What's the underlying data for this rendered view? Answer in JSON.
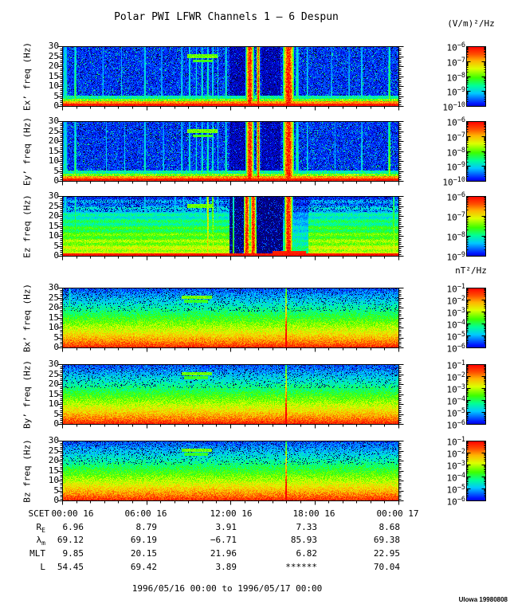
{
  "title": "Polar PWI LFWR Channels 1 — 6 Despun",
  "colorbar_units": {
    "electric": "(V/m)²/Hz",
    "magnetic": "nT²/Hz"
  },
  "freq_ticks": [
    "30",
    "25",
    "20",
    "15",
    "10",
    "5",
    "0"
  ],
  "time_axis": {
    "scet_label": "SCET",
    "ticks": [
      "00:00 16",
      "06:00 16",
      "12:00 16",
      "18:00 16",
      "00:00 17"
    ]
  },
  "ephemeris": {
    "rows": [
      {
        "label_base": "R",
        "label_sub": "E",
        "values": [
          "6.96",
          "8.79",
          "3.91",
          "7.33",
          "8.68"
        ]
      },
      {
        "label_base": "λ",
        "label_sub": "m",
        "values": [
          "69.12",
          "69.19",
          "−6.71",
          "85.93",
          "69.38"
        ]
      },
      {
        "label_base": "MLT",
        "label_sub": "",
        "values": [
          "9.85",
          "20.15",
          "21.96",
          "6.82",
          "22.95"
        ]
      },
      {
        "label_base": "L",
        "label_sub": "",
        "values": [
          "54.45",
          "69.42",
          "3.89",
          "******",
          "70.04"
        ]
      }
    ]
  },
  "footer": {
    "range": "1996/05/16 00:00 to 1996/05/17 00:00",
    "credit": "UIowa 19980808"
  },
  "chart_data": {
    "type": "heatmap",
    "title": "Polar PWI LFWR Channels 1 — 6 Despun",
    "x_axis": {
      "label": "SCET",
      "start": "1996/05/16 00:00",
      "end": "1996/05/17 00:00",
      "ticks": [
        "00:00 16",
        "06:00 16",
        "12:00 16",
        "18:00 16",
        "00:00 17"
      ],
      "minor_tick_hours": 1
    },
    "y_axis": {
      "label": "freq (Hz)",
      "range": [
        0,
        30
      ],
      "ticks": [
        30,
        25,
        20,
        15,
        10,
        5,
        0
      ]
    },
    "legend_position": "right-colorbars",
    "panels": [
      {
        "id": "ex",
        "ylabel": "Ex’ freq (Hz)",
        "units": "(V/m)²/Hz",
        "cb_exponents": [
          -6,
          -7,
          -8,
          -9,
          -10
        ],
        "style": "E",
        "seed": 11,
        "features": {
          "bursts": [
            {
              "t": 0.008,
              "w": 0.007,
              "amp": 0.5,
              "kind": "cyan"
            },
            {
              "t": 0.038,
              "w": 0.0035,
              "amp": 0.62,
              "kind": "green"
            },
            {
              "t": 0.12,
              "w": 0.002,
              "amp": 0.4,
              "kind": "cyan"
            },
            {
              "t": 0.175,
              "w": 0.002,
              "amp": 0.38,
              "kind": "cyan"
            },
            {
              "t": 0.245,
              "w": 0.0035,
              "amp": 0.5,
              "kind": "cyan"
            },
            {
              "t": 0.295,
              "w": 0.002,
              "amp": 0.42,
              "kind": "cyan"
            },
            {
              "t": 0.355,
              "w": 0.003,
              "amp": 0.45,
              "kind": "cyan"
            },
            {
              "t": 0.378,
              "w": 0.003,
              "amp": 0.5,
              "kind": "cyan"
            },
            {
              "t": 0.398,
              "w": 0.0025,
              "amp": 0.46,
              "kind": "cyan"
            },
            {
              "t": 0.415,
              "w": 0.003,
              "amp": 0.52,
              "kind": "cyan"
            },
            {
              "t": 0.432,
              "w": 0.0035,
              "amp": 0.55,
              "kind": "green"
            },
            {
              "t": 0.447,
              "w": 0.0025,
              "amp": 0.5,
              "kind": "cyan"
            },
            {
              "t": 0.462,
              "w": 0.002,
              "amp": 0.45,
              "kind": "cyan"
            },
            {
              "t": 0.486,
              "w": 0.003,
              "amp": 0.55,
              "kind": "cyan"
            },
            {
              "t": 0.557,
              "w": 0.012,
              "amp": 1,
              "kind": "red"
            },
            {
              "t": 0.582,
              "w": 0.005,
              "amp": 0.95,
              "kind": "red"
            },
            {
              "t": 0.672,
              "w": 0.017,
              "amp": 1,
              "kind": "red"
            },
            {
              "t": 0.698,
              "w": 0.005,
              "amp": 0.55,
              "kind": "green"
            },
            {
              "t": 0.728,
              "w": 0.0025,
              "amp": 0.45,
              "kind": "cyan"
            },
            {
              "t": 0.8,
              "w": 0.002,
              "amp": 0.4,
              "kind": "cyan"
            },
            {
              "t": 0.852,
              "w": 0.002,
              "amp": 0.42,
              "kind": "cyan"
            },
            {
              "t": 0.89,
              "w": 0.0025,
              "amp": 0.48,
              "kind": "cyan"
            },
            {
              "t": 0.972,
              "w": 0.0035,
              "amp": 0.65,
              "kind": "green"
            }
          ],
          "hbars": [
            {
              "t0": 0.372,
              "t1": 0.462,
              "f": 25,
              "df": 1.1,
              "amp": 0.5
            },
            {
              "t0": 0.388,
              "t1": 0.447,
              "f": 22.6,
              "df": 0.8,
              "amp": 0.45
            }
          ],
          "dark": [
            {
              "t0": 0.496,
              "t1": 0.545,
              "f": 0.45
            },
            {
              "t0": 0.592,
              "t1": 0.648,
              "f": 0.45
            }
          ]
        }
      },
      {
        "id": "ey",
        "ylabel": "Ey’ freq (Hz)",
        "units": "(V/m)²/Hz",
        "cb_exponents": [
          -6,
          -7,
          -8,
          -9,
          -10
        ],
        "style": "E",
        "seed": 22,
        "features": {
          "bursts": [
            {
              "t": 0.008,
              "w": 0.007,
              "amp": 0.5,
              "kind": "cyan"
            },
            {
              "t": 0.038,
              "w": 0.0035,
              "amp": 0.6,
              "kind": "green"
            },
            {
              "t": 0.13,
              "w": 0.002,
              "amp": 0.4,
              "kind": "cyan"
            },
            {
              "t": 0.185,
              "w": 0.002,
              "amp": 0.38,
              "kind": "cyan"
            },
            {
              "t": 0.245,
              "w": 0.0035,
              "amp": 0.5,
              "kind": "cyan"
            },
            {
              "t": 0.3,
              "w": 0.002,
              "amp": 0.42,
              "kind": "cyan"
            },
            {
              "t": 0.355,
              "w": 0.003,
              "amp": 0.45,
              "kind": "cyan"
            },
            {
              "t": 0.378,
              "w": 0.003,
              "amp": 0.5,
              "kind": "cyan"
            },
            {
              "t": 0.398,
              "w": 0.0025,
              "amp": 0.46,
              "kind": "cyan"
            },
            {
              "t": 0.415,
              "w": 0.003,
              "amp": 0.52,
              "kind": "cyan"
            },
            {
              "t": 0.432,
              "w": 0.0035,
              "amp": 0.55,
              "kind": "green"
            },
            {
              "t": 0.447,
              "w": 0.0025,
              "amp": 0.5,
              "kind": "cyan"
            },
            {
              "t": 0.462,
              "w": 0.002,
              "amp": 0.45,
              "kind": "cyan"
            },
            {
              "t": 0.486,
              "w": 0.003,
              "amp": 0.55,
              "kind": "cyan"
            },
            {
              "t": 0.557,
              "w": 0.012,
              "amp": 1,
              "kind": "red"
            },
            {
              "t": 0.582,
              "w": 0.005,
              "amp": 0.95,
              "kind": "red"
            },
            {
              "t": 0.672,
              "w": 0.017,
              "amp": 1,
              "kind": "red"
            },
            {
              "t": 0.698,
              "w": 0.005,
              "amp": 0.55,
              "kind": "green"
            },
            {
              "t": 0.728,
              "w": 0.0025,
              "amp": 0.45,
              "kind": "cyan"
            },
            {
              "t": 0.81,
              "w": 0.002,
              "amp": 0.4,
              "kind": "cyan"
            },
            {
              "t": 0.89,
              "w": 0.0025,
              "amp": 0.45,
              "kind": "cyan"
            },
            {
              "t": 0.972,
              "w": 0.004,
              "amp": 0.75,
              "kind": "green"
            }
          ],
          "hbars": [
            {
              "t0": 0.372,
              "t1": 0.462,
              "f": 25,
              "df": 1.1,
              "amp": 0.5
            },
            {
              "t0": 0.388,
              "t1": 0.447,
              "f": 22.6,
              "df": 0.8,
              "amp": 0.45
            }
          ],
          "dark": [
            {
              "t0": 0.496,
              "t1": 0.545,
              "f": 0.45
            },
            {
              "t0": 0.592,
              "t1": 0.648,
              "f": 0.45
            }
          ]
        }
      },
      {
        "id": "ez",
        "ylabel": "Ez freq (Hz)",
        "units": "(V/m)²/Hz",
        "cb_exponents": [
          -6,
          -7,
          -8,
          -9
        ],
        "style": "E3",
        "seed": 33,
        "features": {
          "bursts": [
            {
              "t": 0.008,
              "w": 0.005,
              "amp": 0.55,
              "kind": "green"
            },
            {
              "t": 0.038,
              "w": 0.003,
              "amp": 0.7,
              "kind": "green"
            },
            {
              "t": 0.245,
              "w": 0.003,
              "amp": 0.55,
              "kind": "green"
            },
            {
              "t": 0.335,
              "w": 0.004,
              "amp": 0.5,
              "kind": "green"
            },
            {
              "t": 0.36,
              "w": 0.003,
              "amp": 0.5,
              "kind": "green"
            },
            {
              "t": 0.41,
              "w": 0.004,
              "amp": 0.55,
              "kind": "green"
            },
            {
              "t": 0.432,
              "w": 0.004,
              "amp": 0.75,
              "kind": "red"
            },
            {
              "t": 0.447,
              "w": 0.003,
              "amp": 0.65,
              "kind": "red"
            },
            {
              "t": 0.462,
              "w": 0.003,
              "amp": 0.6,
              "kind": "green"
            },
            {
              "t": 0.508,
              "w": 0.0025,
              "amp": 0.7,
              "kind": "green"
            },
            {
              "t": 0.548,
              "w": 0.009,
              "amp": 1,
              "kind": "red"
            },
            {
              "t": 0.567,
              "w": 0.009,
              "amp": 1,
              "kind": "red"
            },
            {
              "t": 0.672,
              "w": 0.013,
              "amp": 1,
              "kind": "red"
            },
            {
              "t": 0.675,
              "w": 0.05,
              "amp": 0.95,
              "kind": "bottom"
            },
            {
              "t": 0.985,
              "w": 0.0035,
              "amp": 0.8,
              "kind": "green"
            }
          ],
          "hbars": [
            {
              "t0": 0.372,
              "t1": 0.447,
              "f": 25,
              "df": 1,
              "amp": 0.5
            }
          ],
          "blackout": [
            {
              "t0": 0.497,
              "t1": 0.538
            },
            {
              "t0": 0.578,
              "t1": 0.655
            }
          ],
          "dark": [
            {
              "t0": 0.655,
              "t1": 0.73,
              "f": 0.6
            }
          ]
        }
      },
      {
        "id": "bx",
        "ylabel": "Bx’ freq (Hz)",
        "units": "nT²/Hz",
        "cb_exponents": [
          -1,
          -2,
          -3,
          -4,
          -5,
          -6
        ],
        "style": "B",
        "seed": 44,
        "features": {
          "bursts": [
            {
              "t": 0.022,
              "w": 0.0025,
              "amp": 0.68,
              "kind": "green"
            },
            {
              "t": 0.665,
              "w": 0.003,
              "amp": 0.9,
              "kind": "line"
            }
          ],
          "hbars": [
            {
              "t0": 0.355,
              "t1": 0.445,
              "f": 25.3,
              "df": 0.85,
              "amp": 0.5
            },
            {
              "t0": 0.362,
              "t1": 0.432,
              "f": 23.2,
              "df": 0.7,
              "amp": 0.44
            }
          ]
        }
      },
      {
        "id": "by",
        "ylabel": "By’ freq (Hz)",
        "units": "nT²/Hz",
        "cb_exponents": [
          -1,
          -2,
          -3,
          -4,
          -5,
          -6
        ],
        "style": "B",
        "seed": 55,
        "features": {
          "bursts": [
            {
              "t": 0.022,
              "w": 0.002,
              "amp": 0.5,
              "kind": "green"
            },
            {
              "t": 0.665,
              "w": 0.003,
              "amp": 0.9,
              "kind": "line"
            }
          ],
          "hbars": [
            {
              "t0": 0.355,
              "t1": 0.445,
              "f": 25.3,
              "df": 0.85,
              "amp": 0.5
            },
            {
              "t0": 0.362,
              "t1": 0.432,
              "f": 23.2,
              "df": 0.7,
              "amp": 0.44
            }
          ]
        }
      },
      {
        "id": "bz",
        "ylabel": "Bz freq (Hz)",
        "units": "nT²/Hz",
        "cb_exponents": [
          -1,
          -2,
          -3,
          -4,
          -5,
          -6
        ],
        "style": "B",
        "seed": 66,
        "features": {
          "bursts": [
            {
              "t": 0.665,
              "w": 0.003,
              "amp": 0.9,
              "kind": "line"
            }
          ],
          "hbars": [
            {
              "t0": 0.355,
              "t1": 0.445,
              "f": 25.3,
              "df": 0.85,
              "amp": 0.5
            },
            {
              "t0": 0.362,
              "t1": 0.432,
              "f": 23.2,
              "df": 0.7,
              "amp": 0.44
            }
          ]
        }
      }
    ]
  }
}
